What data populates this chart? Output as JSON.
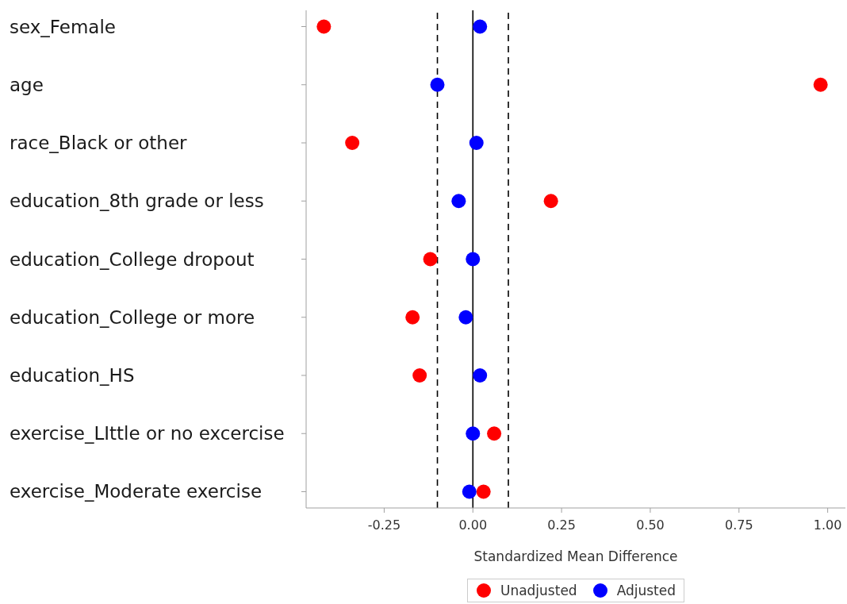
{
  "chart_data": {
    "type": "scatter",
    "orientation": "horizontal",
    "categories": [
      "sex_Female",
      "age",
      "race_Black or other",
      "education_8th grade or less",
      "education_College dropout",
      "education_College or more",
      "education_HS",
      "exercise_LIttle or no excercise",
      "exercise_Moderate exercise"
    ],
    "series": [
      {
        "name": "Unadjusted",
        "color": "#ff0000",
        "values": [
          -0.42,
          0.98,
          -0.34,
          0.22,
          -0.12,
          -0.17,
          -0.15,
          0.06,
          0.03
        ]
      },
      {
        "name": "Adjusted",
        "color": "#0000ff",
        "values": [
          0.02,
          -0.1,
          0.01,
          -0.04,
          0.0,
          -0.02,
          0.02,
          0.0,
          -0.01
        ]
      }
    ],
    "xlabel": "Standardized Mean Difference",
    "xlim": [
      -0.47,
      1.05
    ],
    "xticks": [
      {
        "value": -0.25,
        "label": "-0.25"
      },
      {
        "value": 0,
        "label": "0.00"
      },
      {
        "value": 0.25,
        "label": "0.25"
      },
      {
        "value": 0.5,
        "label": "0.50"
      },
      {
        "value": 0.75,
        "label": "0.75"
      },
      {
        "value": 1,
        "label": "1.00"
      }
    ],
    "ref_lines": [
      {
        "axis": "x",
        "value": -0.1,
        "color": "#000000",
        "line_style": "dashed"
      },
      {
        "axis": "x",
        "value": 0,
        "color": "#000000",
        "line_style": "solid"
      },
      {
        "axis": "x",
        "value": 0.1,
        "color": "#000000",
        "line_style": "dashed"
      }
    ],
    "legend": "bottom",
    "marker": "circle"
  }
}
